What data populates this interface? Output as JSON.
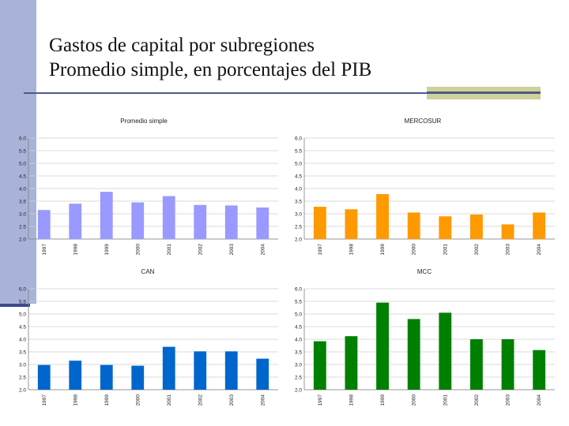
{
  "slide": {
    "title_line1": "Gastos de capital por subregiones",
    "title_line2": "Promedio simple, en porcentajes del PIB"
  },
  "chart_data": [
    {
      "type": "bar",
      "title": "Promedio simple",
      "categories": [
        "1997",
        "1998",
        "1999",
        "2000",
        "2001",
        "2002",
        "2003",
        "2004"
      ],
      "values": [
        3.15,
        3.4,
        3.87,
        3.45,
        3.7,
        3.35,
        3.33,
        3.25
      ],
      "ylim": [
        2.0,
        6.0
      ],
      "yticks": [
        "6.0",
        "5.5",
        "5.0",
        "4.5",
        "4.0",
        "3.5",
        "3.0",
        "2.5",
        "2.0"
      ],
      "color": "#9999ff",
      "grid": true
    },
    {
      "type": "bar",
      "title": "MERCOSUR",
      "categories": [
        "1997",
        "1998",
        "1999",
        "2000",
        "2001",
        "2002",
        "2003",
        "2004"
      ],
      "values": [
        3.28,
        3.18,
        3.78,
        3.05,
        2.9,
        2.97,
        2.58,
        3.05
      ],
      "ylim": [
        2.0,
        6.0
      ],
      "yticks": [
        "6.0",
        "5.5",
        "5.0",
        "4.5",
        "4.0",
        "3.5",
        "3.0",
        "2.5",
        "2.0"
      ],
      "color": "#ff9900",
      "grid": true
    },
    {
      "type": "bar",
      "title": "CAN",
      "categories": [
        "1997",
        "1998",
        "1999",
        "2000",
        "2001",
        "2002",
        "2003",
        "2004"
      ],
      "values": [
        2.98,
        3.15,
        2.98,
        2.95,
        3.7,
        3.52,
        3.52,
        3.23
      ],
      "ylim": [
        2.0,
        6.0
      ],
      "yticks": [
        "6.0",
        "5.5",
        "5.0",
        "4.5",
        "4.0",
        "3.5",
        "3.0",
        "2.5",
        "2.0"
      ],
      "color": "#0066cc",
      "grid": true
    },
    {
      "type": "bar",
      "title": "MCC",
      "categories": [
        "1997",
        "1998",
        "1999",
        "2000",
        "2001",
        "2002",
        "2003",
        "2004"
      ],
      "values": [
        3.92,
        4.12,
        5.45,
        4.8,
        5.05,
        4.0,
        4.0,
        3.57
      ],
      "ylim": [
        2.0,
        6.0
      ],
      "yticks": [
        "6.0",
        "5.5",
        "5.0",
        "4.5",
        "4.0",
        "3.5",
        "3.0",
        "2.5",
        "2.0"
      ],
      "color": "#008000",
      "grid": true
    }
  ]
}
